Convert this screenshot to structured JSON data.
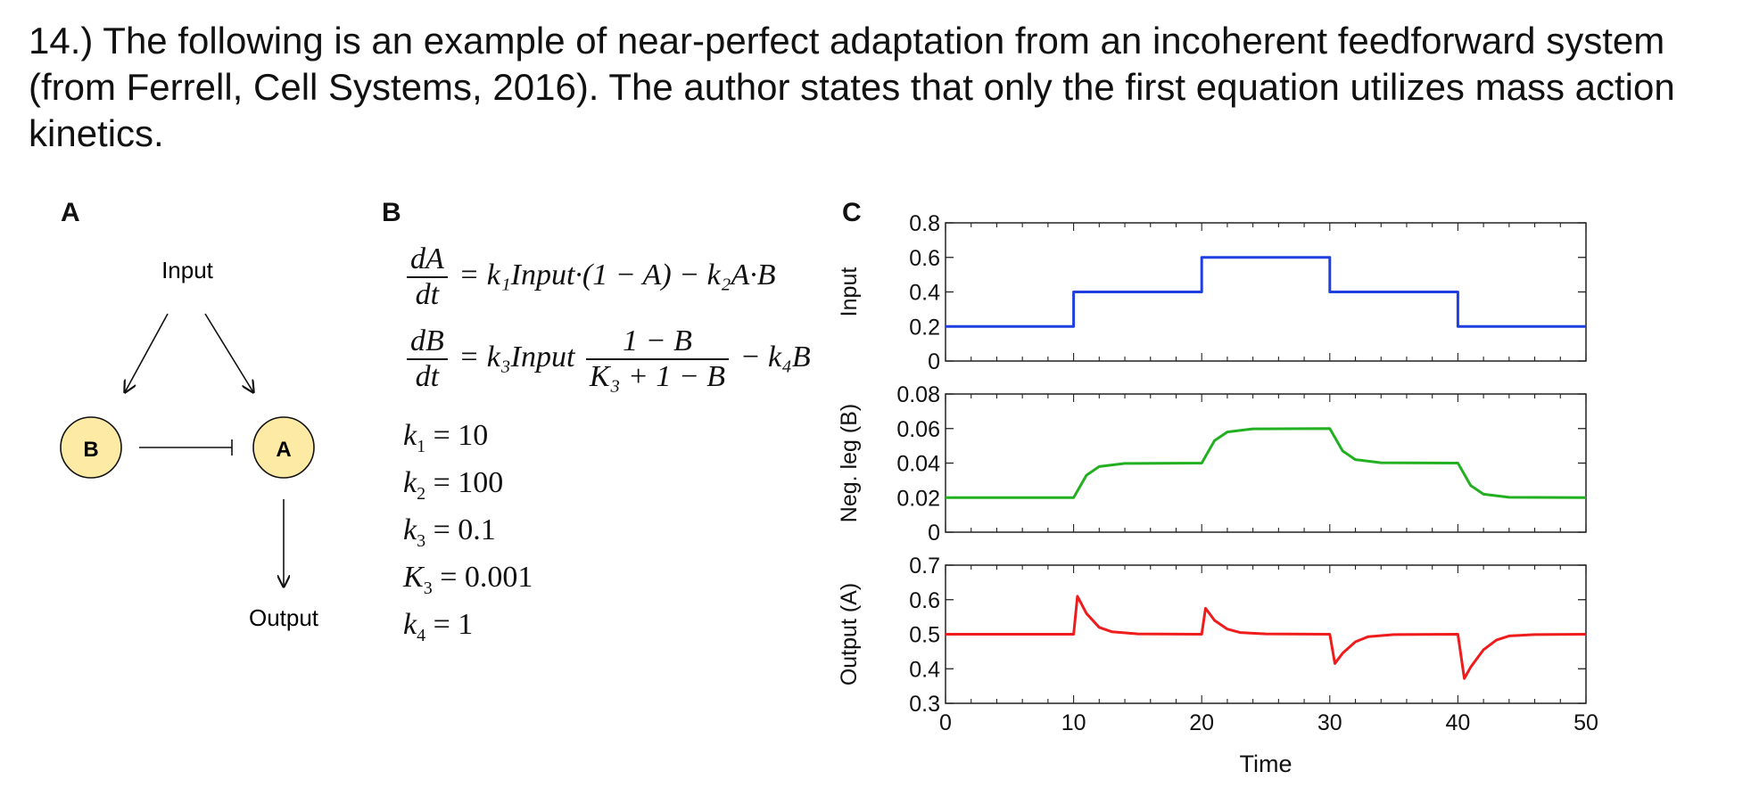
{
  "question": "14.) The following is an example of near-perfect adaptation from an incoherent feedforward system (from Ferrell, Cell Systems, 2016). The author states that only the first equation utilizes mass action kinetics.",
  "panels": {
    "a": "A",
    "b": "B",
    "c": "C"
  },
  "diagram": {
    "input": "Input",
    "output": "Output",
    "node_b": "B",
    "node_a": "A",
    "node_fill": "#fdeba5"
  },
  "equations": {
    "eq1": {
      "num": "dA",
      "den": "dt",
      "rhs": "= k₁Input·(1 − A) − k₂A·B"
    },
    "eq2": {
      "num": "dB",
      "den": "dt",
      "pre": "= k₃Input",
      "frac_num": "1 − B",
      "frac_den": "K₃ + 1 − B",
      "post": "− k₄B"
    }
  },
  "parameters": [
    {
      "sym": "k",
      "sub": "1",
      "value": "= 10"
    },
    {
      "sym": "k",
      "sub": "2",
      "value": "= 100"
    },
    {
      "sym": "k",
      "sub": "3",
      "value": "= 0.1"
    },
    {
      "sym": "K",
      "sub": "3",
      "value": "= 0.001"
    },
    {
      "sym": "k",
      "sub": "4",
      "value": "= 1"
    }
  ],
  "chart_data": {
    "type": "line",
    "xlabel": "Time",
    "xlim": [
      0,
      50
    ],
    "xticks": [
      0,
      10,
      20,
      30,
      40,
      50
    ],
    "panels": [
      {
        "ylabel": "Input",
        "color": "#1f3fe0",
        "ylim": [
          0,
          0.8
        ],
        "yticks": [
          0,
          0.2,
          0.4,
          0.6,
          0.8
        ],
        "ytick_labels": [
          "0",
          "0.2",
          "0.4",
          "0.6",
          "0.8"
        ],
        "x": [
          0,
          10,
          10,
          20,
          20,
          30,
          30,
          40,
          40,
          50
        ],
        "y": [
          0.2,
          0.2,
          0.4,
          0.4,
          0.6,
          0.6,
          0.4,
          0.4,
          0.2,
          0.2
        ]
      },
      {
        "ylabel": "Neg. leg (B)",
        "color": "#22b022",
        "ylim": [
          0,
          0.08
        ],
        "yticks": [
          0,
          0.02,
          0.04,
          0.06,
          0.08
        ],
        "ytick_labels": [
          "0",
          "0.02",
          "0.04",
          "0.06",
          "0.08"
        ],
        "x": [
          0,
          10,
          11,
          12,
          14,
          20,
          21,
          22,
          24,
          30,
          31,
          32,
          34,
          40,
          41,
          42,
          44,
          50
        ],
        "y": [
          0.02,
          0.02,
          0.033,
          0.038,
          0.0398,
          0.04,
          0.053,
          0.058,
          0.0598,
          0.06,
          0.047,
          0.042,
          0.0402,
          0.04,
          0.027,
          0.022,
          0.0202,
          0.02
        ]
      },
      {
        "ylabel": "Output (A)",
        "color": "#ee1c1c",
        "ylim": [
          0.3,
          0.7
        ],
        "yticks": [
          0.3,
          0.4,
          0.5,
          0.6,
          0.7
        ],
        "ytick_labels": [
          "0.3",
          "0.4",
          "0.5",
          "0.6",
          "0.7"
        ],
        "x": [
          0,
          10,
          10.3,
          11,
          12,
          13,
          15,
          20,
          20.3,
          21,
          22,
          23,
          25,
          30,
          30.4,
          31,
          32,
          33,
          35,
          40,
          40.5,
          41,
          42,
          43,
          44,
          46,
          50
        ],
        "y": [
          0.5,
          0.5,
          0.61,
          0.56,
          0.52,
          0.507,
          0.501,
          0.5,
          0.575,
          0.54,
          0.515,
          0.505,
          0.501,
          0.5,
          0.415,
          0.445,
          0.478,
          0.493,
          0.499,
          0.5,
          0.372,
          0.405,
          0.455,
          0.483,
          0.495,
          0.499,
          0.5
        ]
      }
    ]
  }
}
